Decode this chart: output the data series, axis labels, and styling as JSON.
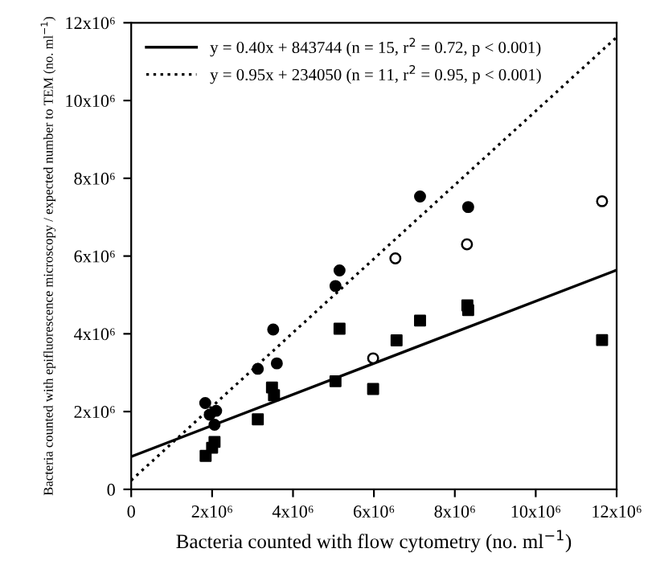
{
  "chart_data": {
    "type": "scatter",
    "xlabel": "Bacteria counted with flow cytometry (no. ml$^{−1}$)",
    "ylabel": "Bacteria counted with epifluorescence microscopy / expected number to TEM (no. ml$^{−1}$)",
    "xlim": [
      0,
      12000000
    ],
    "ylim": [
      0,
      12000000
    ],
    "xticks": [
      0,
      {
        "value": 2000000,
        "label": "2x10⁶"
      },
      {
        "value": 4000000,
        "label": "4x10⁶"
      },
      {
        "value": 6000000,
        "label": "6x10⁶"
      },
      {
        "value": 8000000,
        "label": "8x10⁶"
      },
      {
        "value": 10000000,
        "label": "10x10⁶"
      },
      {
        "value": 12000000,
        "label": "12x10⁶"
      }
    ],
    "yticks": [
      0,
      {
        "value": 2000000,
        "label": "2x10⁶"
      },
      {
        "value": 4000000,
        "label": "4x10⁶"
      },
      {
        "value": 6000000,
        "label": "6x10⁶"
      },
      {
        "value": 8000000,
        "label": "8x10⁶"
      },
      {
        "value": 10000000,
        "label": "10x10⁶"
      },
      {
        "value": 12000000,
        "label": "12x10⁶"
      }
    ],
    "grid": false,
    "legend": "top left",
    "series": [
      {
        "marker": "square",
        "color": "#000000",
        "x": [
          1840000,
          2000000,
          2060000,
          3130000,
          3480000,
          3530000,
          5050000,
          5150000,
          5980000,
          6560000,
          7140000,
          8310000,
          8330000,
          11640000
        ],
        "values": [
          860000,
          1070000,
          1220000,
          1800000,
          2620000,
          2420000,
          2780000,
          4130000,
          2580000,
          3830000,
          4340000,
          4730000,
          4610000,
          3840000
        ]
      },
      {
        "marker": "circle",
        "color": "#000000",
        "x": [
          1830000,
          1940000,
          2100000,
          2060000,
          3130000,
          3510000,
          3600000,
          5050000,
          5150000,
          7140000,
          8330000
        ],
        "values": [
          2220000,
          1920000,
          2020000,
          1660000,
          3100000,
          4110000,
          3240000,
          5230000,
          5630000,
          7530000,
          7260000
        ]
      },
      {
        "marker": "circle",
        "color": "#ffffff",
        "x": [
          5980000,
          6530000,
          8300000,
          11640000
        ],
        "values": [
          3370000,
          5940000,
          6300000,
          7410000
        ]
      },
      {
        "type": "line",
        "name": "y = 0.40x + 843744 (n = 15, r$^{2}$ = 0.72, p < 0.001)",
        "color": "#000000",
        "line_style": "solid",
        "marker": "none",
        "x": [
          0,
          12000000
        ],
        "values": [
          840000,
          5640000
        ]
      },
      {
        "type": "line",
        "name": "y = 0.95x + 234050 (n = 11, r$^{2}$ = 0.95, p < 0.001)",
        "color": "#000000",
        "line_style": "dotted",
        "marker": "none",
        "x": [
          0,
          12000000
        ],
        "values": [
          230000,
          11630000
        ]
      }
    ]
  }
}
